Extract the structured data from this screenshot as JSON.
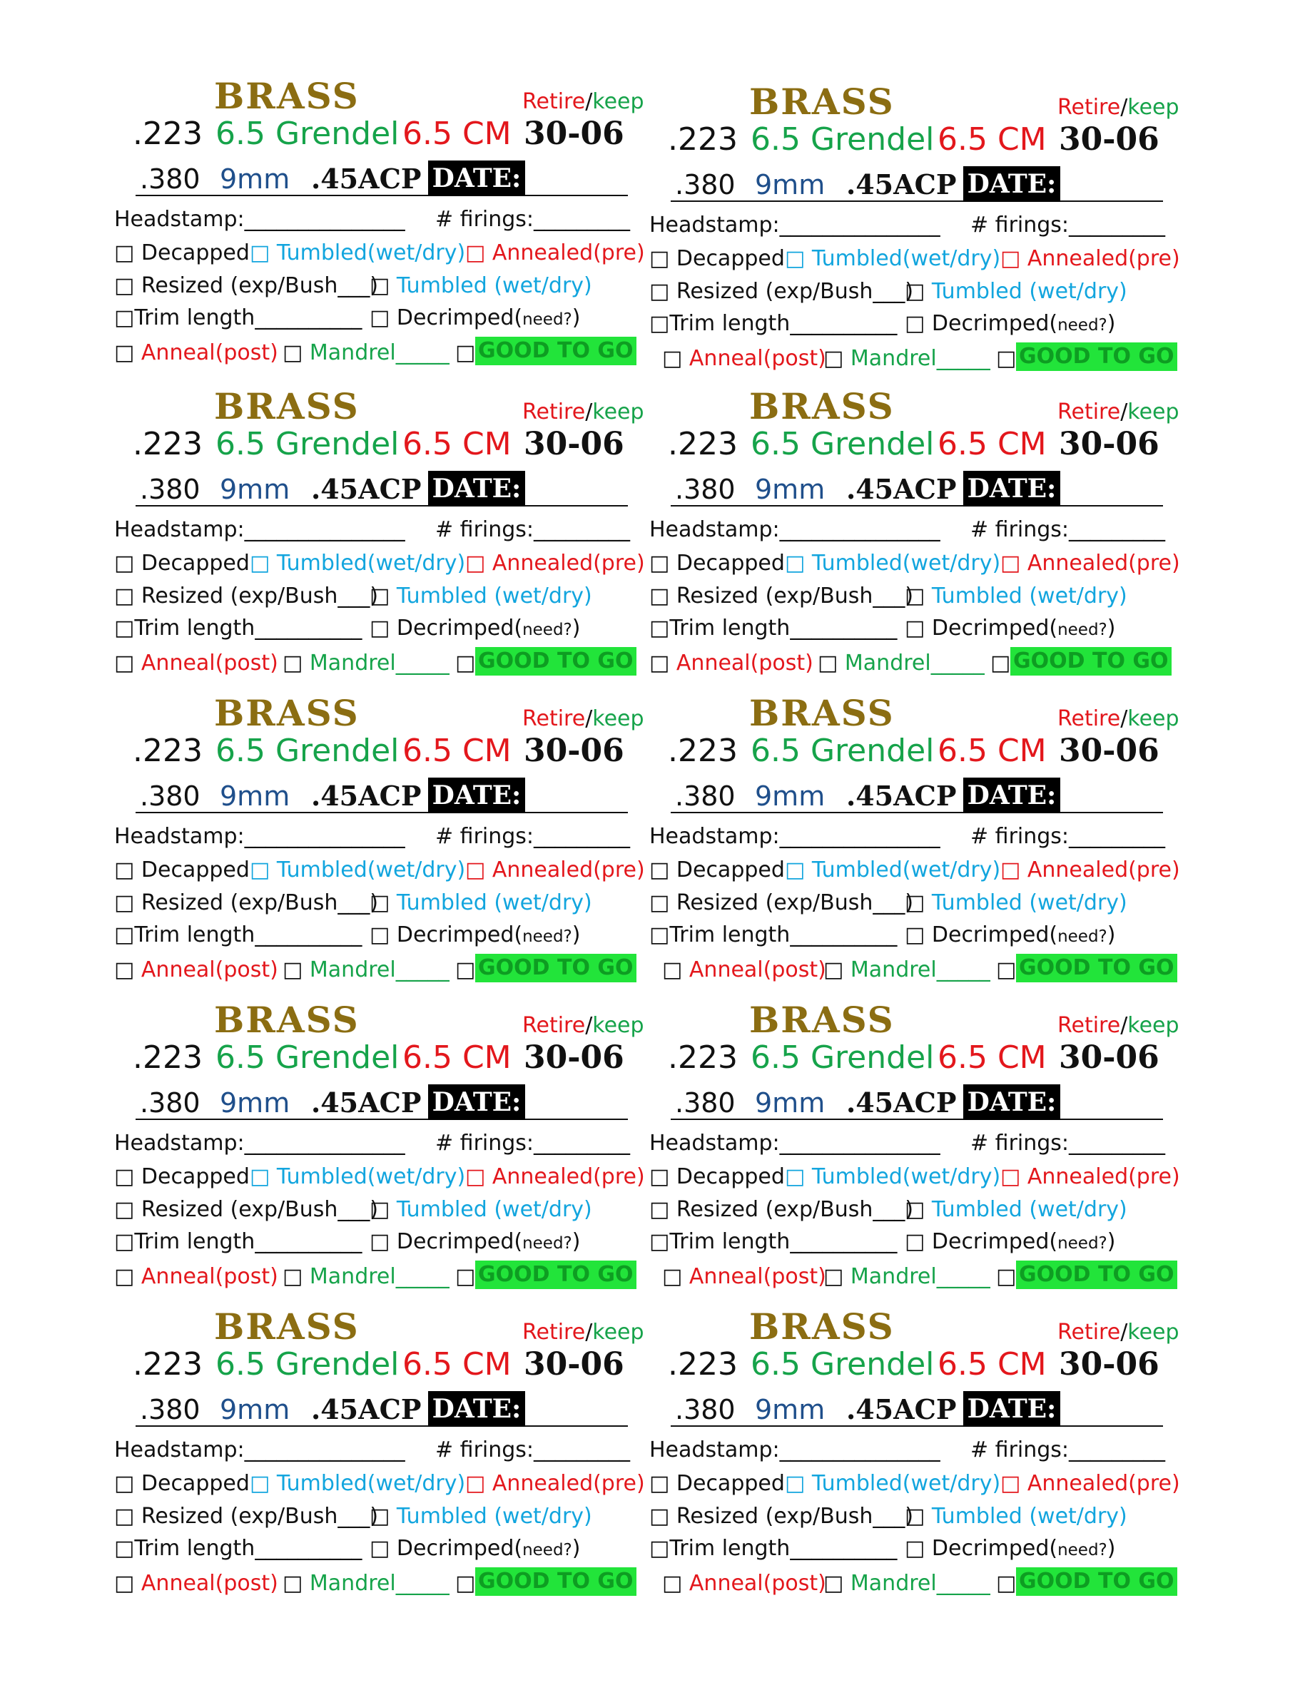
{
  "card": {
    "title": "BRASS",
    "retire": "Retire",
    "slash": "/",
    "keep": "keep",
    "cal_223": ".223",
    "cal_grendel": "6.5 Grendel",
    "cal_cm": "6.5 CM",
    "cal_3006": "30-06",
    "cal_380": ".380",
    "cal_9mm": "9mm",
    "cal_45": ".45ACP",
    "date_label": "DATE:",
    "headstamp": "Headstamp:_______________",
    "firings": "# firings:_________",
    "decapped": "□ Decapped",
    "tumbled1": "□ Tumbled(wet/dry)",
    "annealed_pre": "□ Annealed(pre)",
    "resized": "□ Resized (exp/Bush___)",
    "tumbled2_box": "□",
    "tumbled2": "Tumbled (wet/dry)",
    "trim": "□Trim length__________",
    "decrimped": "□ Decrimped(",
    "need": "need?",
    "decrimped_close": ")",
    "anneal_box": "□",
    "anneal_post": "Anneal(post)",
    "mandrel_box": "□",
    "mandrel": "Mandrel_____",
    "go_box": "□",
    "good_to_go": "GOOD TO GO"
  },
  "cards_count": 10
}
